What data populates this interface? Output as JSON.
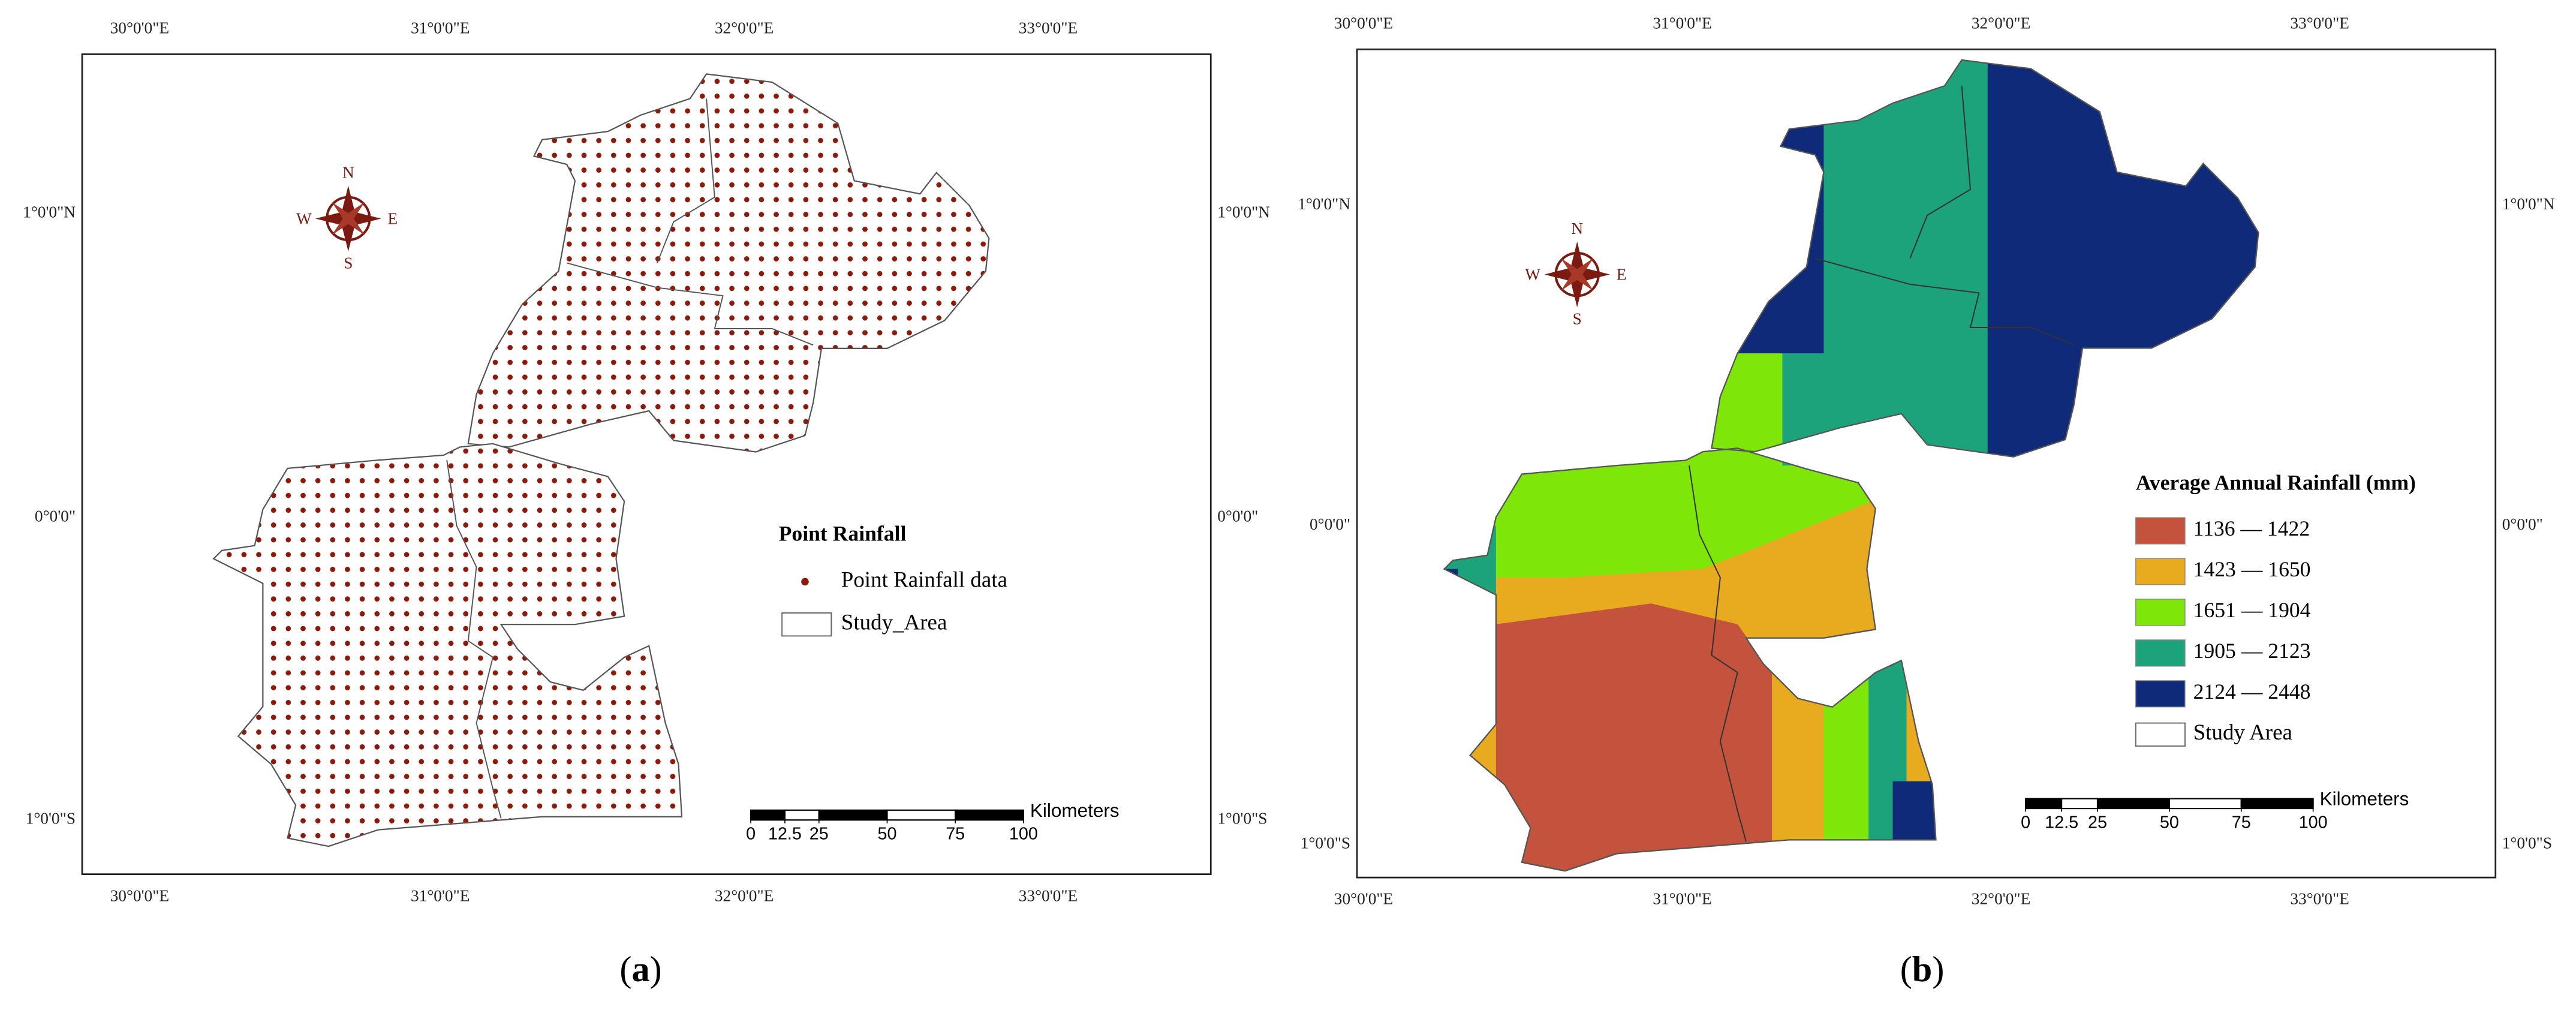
{
  "panels": [
    {
      "caption": {
        "open": "(",
        "letter": "a",
        "close": ")"
      },
      "lon_labels": [
        "30°0'0\"E",
        "31°0'0\"E",
        "32°0'0\"E",
        "33°0'0\"E"
      ],
      "lat_labels": [
        "1°0'0\"N",
        "0°0'0\"",
        "1°0'0\"S"
      ],
      "legend": {
        "title": "Point Rainfall",
        "points": "Point Rainfall data",
        "point_color": "#8b1a0a",
        "study_area": "Study_Area"
      },
      "scale": {
        "unit": "Kilometers",
        "ticks": [
          0,
          12.5,
          25,
          50,
          75,
          100
        ]
      }
    },
    {
      "caption": {
        "open": "(",
        "letter": "b",
        "close": ")"
      },
      "lon_labels": [
        "30°0'0\"E",
        "31°0'0\"E",
        "32°0'0\"E",
        "33°0'0\"E"
      ],
      "lat_labels": [
        "1°0'0\"N",
        "0°0'0\"",
        "1°0'0\"S"
      ],
      "legend": {
        "title": "Average Annual Rainfall (mm)",
        "classes": [
          {
            "label": "1136 — 1422",
            "color": "#c4533d"
          },
          {
            "label": "1423 — 1650",
            "color": "#e8aa1e"
          },
          {
            "label": "1651 — 1904",
            "color": "#7fe60a"
          },
          {
            "label": "1905 — 2123",
            "color": "#1ca37c"
          },
          {
            "label": "2124 — 2448",
            "color": "#0f2a78"
          }
        ],
        "study_area": "Study Area"
      },
      "scale": {
        "unit": "Kilometers",
        "ticks": [
          0,
          12.5,
          25,
          50,
          75,
          100
        ]
      }
    }
  ],
  "compass": {
    "n": "N",
    "e": "E",
    "s": "S",
    "w": "W"
  }
}
